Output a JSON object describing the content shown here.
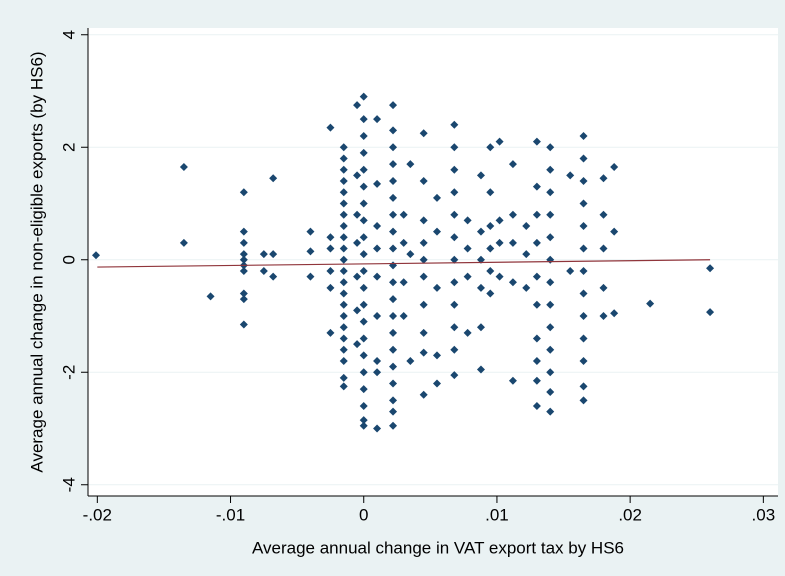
{
  "chart_data": {
    "type": "scatter",
    "xlabel": "Average annual change in VAT export tax by HS6",
    "ylabel": "Average annual change in non-eligible exports (by HS6)",
    "xlim": [
      -0.0207,
      0.0311
    ],
    "ylim": [
      -4.2,
      4.12
    ],
    "xticks": [
      {
        "value": -0.02,
        "label": "-.02"
      },
      {
        "value": -0.01,
        "label": "-.01"
      },
      0,
      {
        "value": 0.01,
        "label": ".01"
      },
      {
        "value": 0.02,
        "label": ".02"
      },
      {
        "value": 0.03,
        "label": ".03"
      }
    ],
    "yticks": [
      -4,
      -2,
      0,
      2,
      4
    ],
    "grid": true,
    "color": "#1a476f",
    "x": [
      -0.0201,
      -0.0135,
      -0.0135,
      -0.0115,
      -0.009,
      -0.009,
      -0.009,
      -0.009,
      -0.009,
      -0.009,
      -0.009,
      -0.009,
      -0.009,
      -0.009,
      -0.0075,
      -0.0075,
      -0.0068,
      -0.0068,
      -0.0068,
      -0.004,
      -0.004,
      -0.004,
      -0.0025,
      -0.0025,
      -0.0025,
      -0.0025,
      -0.0025,
      -0.0025,
      -0.0015,
      -0.0015,
      -0.0015,
      -0.0015,
      -0.0015,
      -0.0015,
      -0.0015,
      -0.0015,
      -0.0015,
      -0.0015,
      -0.0015,
      -0.0015,
      -0.0015,
      -0.0015,
      -0.0015,
      -0.0015,
      -0.0015,
      -0.0015,
      -0.0015,
      -0.0015,
      -0.0015,
      -0.0015,
      -0.0005,
      -0.0005,
      -0.0005,
      -0.0005,
      -0.0005,
      -0.0005,
      -0.0005,
      0,
      0,
      0,
      0,
      0,
      0,
      0,
      0,
      0,
      0,
      0,
      0,
      0,
      0,
      0,
      0,
      0,
      0,
      0,
      0,
      0,
      0.001,
      0.001,
      0.001,
      0.001,
      0.001,
      0.001,
      0.001,
      0.001,
      0.001,
      0.0022,
      0.0022,
      0.0022,
      0.0022,
      0.0022,
      0.0022,
      0.0022,
      0.0022,
      0.0022,
      0.0022,
      0.0022,
      0.0022,
      0.0022,
      0.0022,
      0.0022,
      0.0022,
      0.0022,
      0.0022,
      0.0022,
      0.0022,
      0.003,
      0.003,
      0.003,
      0.003,
      0.0035,
      0.0035,
      0.0035,
      0.0045,
      0.0045,
      0.0045,
      0.0045,
      0.0045,
      0.0045,
      0.0045,
      0.0045,
      0.0045,
      0.0045,
      0.0055,
      0.0055,
      0.0055,
      0.0055,
      0.0055,
      0.0068,
      0.0068,
      0.0068,
      0.0068,
      0.0068,
      0.0068,
      0.0068,
      0.0068,
      0.0068,
      0.0068,
      0.0068,
      0.0068,
      0.0078,
      0.0078,
      0.0078,
      0.0078,
      0.0088,
      0.0088,
      0.0088,
      0.0088,
      0.0088,
      0.0088,
      0.0095,
      0.0095,
      0.0095,
      0.0095,
      0.0095,
      0.0095,
      0.0102,
      0.0102,
      0.0102,
      0.0102,
      0.0112,
      0.0112,
      0.0112,
      0.0112,
      0.0112,
      0.0122,
      0.0122,
      0.0122,
      0.013,
      0.013,
      0.013,
      0.013,
      0.013,
      0.013,
      0.013,
      0.013,
      0.013,
      0.013,
      0.014,
      0.014,
      0.014,
      0.014,
      0.014,
      0.014,
      0.014,
      0.014,
      0.014,
      0.014,
      0.014,
      0.014,
      0.014,
      0.0155,
      0.0155,
      0.0165,
      0.0165,
      0.0165,
      0.0165,
      0.0165,
      0.0165,
      0.0165,
      0.0165,
      0.0165,
      0.0165,
      0.0165,
      0.0165,
      0.0165,
      0.018,
      0.018,
      0.018,
      0.018,
      0.018,
      0.0188,
      0.0188,
      0.0188,
      0.0215,
      0.026,
      0.026
    ],
    "values": [
      0.08,
      1.65,
      0.3,
      -0.65,
      1.2,
      0.5,
      0.3,
      0.1,
      0,
      -0.1,
      -0.2,
      -0.6,
      -0.7,
      -1.15,
      0.1,
      -0.2,
      1.45,
      0.1,
      -0.3,
      0.5,
      0.15,
      -0.3,
      2.35,
      0.4,
      0.2,
      -0.2,
      -0.5,
      -1.3,
      2.0,
      1.8,
      1.6,
      1.4,
      1.2,
      1.0,
      0.8,
      0.6,
      0.4,
      0.2,
      0,
      -0.2,
      -0.4,
      -0.6,
      -0.8,
      -1.0,
      -1.2,
      -1.4,
      -1.6,
      -1.8,
      -2.1,
      -2.25,
      2.75,
      1.5,
      0.8,
      0.3,
      -0.3,
      -0.9,
      -1.5,
      2.9,
      2.5,
      2.2,
      1.9,
      1.6,
      1.3,
      1.0,
      0.7,
      0.4,
      0.1,
      -0.2,
      -0.5,
      -0.8,
      -1.1,
      -1.4,
      -1.7,
      -2.0,
      -2.3,
      -2.6,
      -2.85,
      -2.95,
      2.5,
      1.35,
      0.6,
      0.2,
      -0.3,
      -1.0,
      -1.8,
      -2.0,
      -3.0,
      2.75,
      2.3,
      2.0,
      1.7,
      1.4,
      1.1,
      0.8,
      0.5,
      0.2,
      -0.1,
      -0.4,
      -0.7,
      -1.0,
      -1.3,
      -1.6,
      -1.9,
      -2.2,
      -2.5,
      -2.7,
      -2.95,
      0.8,
      0.3,
      -0.4,
      -1.0,
      1.7,
      0.1,
      -1.8,
      2.25,
      1.4,
      0.7,
      0.3,
      0,
      -0.3,
      -0.8,
      -1.3,
      -1.65,
      -2.4,
      1.1,
      0.5,
      -0.5,
      -1.7,
      -2.2,
      2.4,
      2.0,
      1.6,
      1.2,
      0.8,
      0.4,
      0,
      -0.4,
      -0.8,
      -1.2,
      -1.6,
      -2.05,
      0.7,
      0.2,
      -0.3,
      -1.3,
      1.5,
      0.5,
      0,
      -0.5,
      -1.2,
      -1.95,
      2.0,
      1.2,
      0.6,
      0.2,
      -0.2,
      -0.6,
      2.1,
      0.7,
      0.3,
      -0.3,
      1.7,
      0.8,
      0.3,
      -0.4,
      -2.15,
      0.6,
      0.1,
      -0.5,
      2.1,
      1.3,
      0.8,
      0.3,
      -0.3,
      -0.8,
      -1.4,
      -1.8,
      -2.15,
      -2.6,
      2.0,
      1.6,
      1.2,
      0.8,
      0.4,
      0,
      -0.4,
      -0.8,
      -1.2,
      -1.6,
      -2.0,
      -2.35,
      -2.7,
      1.5,
      -0.2,
      2.2,
      1.8,
      1.4,
      1.0,
      0.6,
      0.2,
      -0.2,
      -0.6,
      -1.0,
      -1.4,
      -1.8,
      -2.25,
      -2.5,
      1.45,
      0.8,
      0.2,
      -0.5,
      -1.0,
      1.65,
      0.5,
      -0.95,
      -0.78,
      -0.15,
      -0.93
    ],
    "fit_x": [
      -0.02,
      0.026
    ],
    "fit_values": [
      -0.13,
      0.0
    ],
    "fit_color": "#90353b"
  }
}
